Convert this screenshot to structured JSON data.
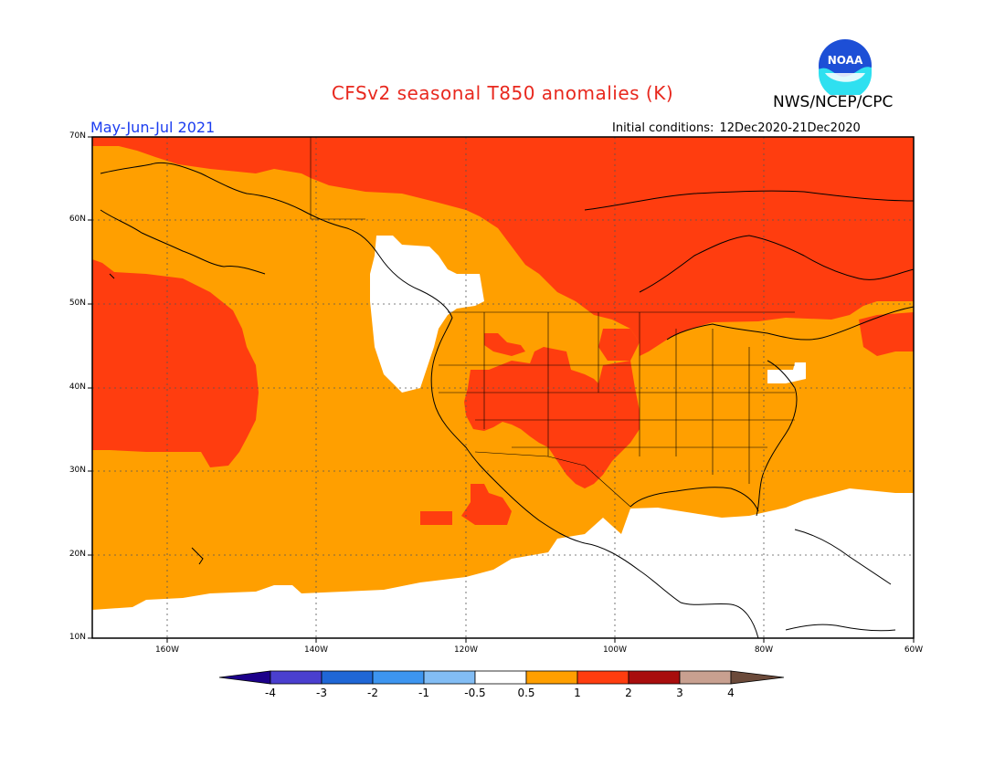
{
  "header": {
    "title": "CFSv2 seasonal T850 anomalies (K)",
    "org": "NWS/NCEP/CPC",
    "logo_text": "NOAA",
    "period": "May-Jun-Jul 2021",
    "init_label": "Initial conditions:",
    "init_value": "12Dec2020-21Dec2020"
  },
  "axes": {
    "lat_labels": [
      "70N",
      "60N",
      "50N",
      "40N",
      "30N",
      "20N",
      "10N"
    ],
    "lon_labels": [
      "160W",
      "140W",
      "120W",
      "100W",
      "80W",
      "60W"
    ]
  },
  "colorbar": {
    "labels": [
      "-4",
      "-3",
      "-2",
      "-1",
      "-0.5",
      "0.5",
      "1",
      "2",
      "3",
      "4"
    ],
    "colors": [
      "#1c008a",
      "#4a3fcf",
      "#1f67d6",
      "#3d95f0",
      "#82bdf5",
      "#ffffff",
      "#ff9f00",
      "#ff3d0f",
      "#a80d0d",
      "#c8a090",
      "#6b4a3a"
    ]
  },
  "map": {
    "extent_lon": [
      -170,
      -60
    ],
    "extent_lat": [
      10,
      70
    ],
    "anomaly_colors": {
      "ge_0p5": "#ff9f00",
      "ge_1": "#ff3d0f",
      "lt_0p5": "#ffffff"
    }
  }
}
